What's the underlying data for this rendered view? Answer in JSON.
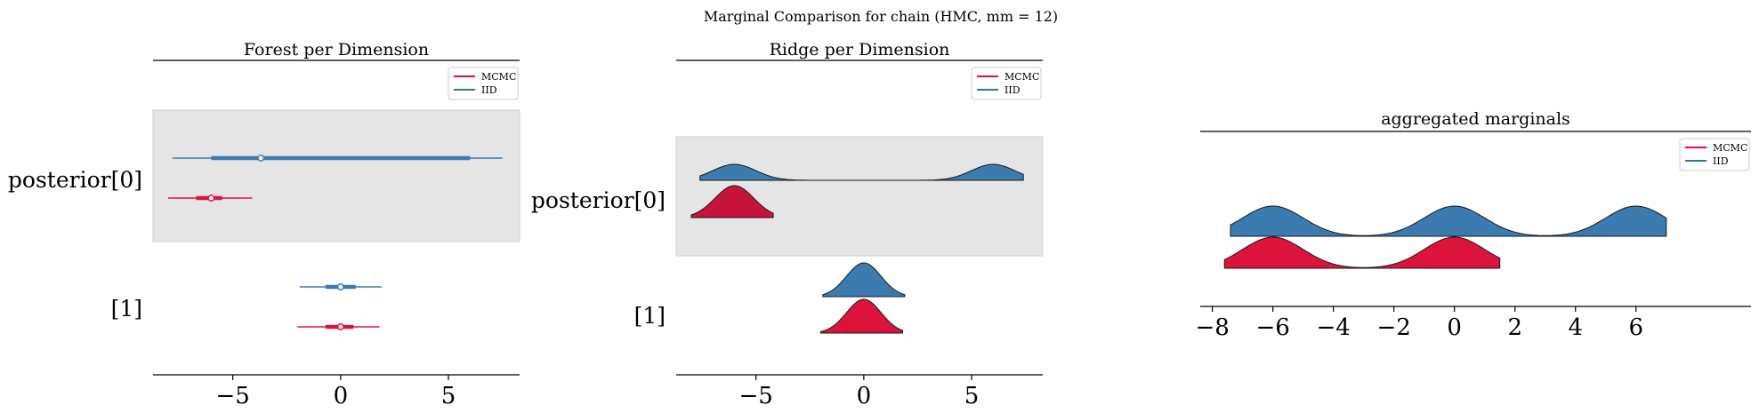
{
  "suptitle": "Marginal Comparison for chain (HMC, mm = 12)",
  "chart_data": [
    {
      "type": "forest",
      "title": "Forest per Dimension",
      "legend": {
        "placement": "top-right",
        "entries": [
          {
            "label": "MCMC",
            "color": "#dc143c"
          },
          {
            "label": "IID",
            "color": "#3b6fa4"
          }
        ]
      },
      "ylabels": [
        "posterior[0]",
        "[1]"
      ],
      "xlim": [
        -8.7,
        8.3
      ],
      "xticks": [
        -5,
        0,
        5
      ],
      "xtick_labels": [
        "−5",
        "0",
        "5"
      ],
      "shaded_rows": [
        0
      ],
      "rows": [
        {
          "IID": {
            "hdi_94": [
              -7.8,
              7.5
            ],
            "hdi_50": [
              -6.0,
              6.0
            ],
            "point": -3.7
          },
          "MCMC": {
            "hdi_94": [
              -8.0,
              -4.1
            ],
            "hdi_50": [
              -6.7,
              -5.5
            ],
            "point": -6.0
          }
        },
        {
          "IID": {
            "hdi_94": [
              -1.9,
              1.9
            ],
            "hdi_50": [
              -0.7,
              0.7
            ],
            "point": 0.0
          },
          "MCMC": {
            "hdi_94": [
              -2.0,
              1.8
            ],
            "hdi_50": [
              -0.7,
              0.6
            ],
            "point": 0.0
          }
        }
      ]
    },
    {
      "type": "ridge",
      "title": "Ridge per Dimension",
      "legend": {
        "placement": "top-right",
        "entries": [
          {
            "label": "MCMC",
            "color": "#dc143c"
          },
          {
            "label": "IID",
            "color": "#3b6fa4"
          }
        ]
      },
      "ylabels": [
        "posterior[0]",
        "[1]"
      ],
      "xlim": [
        -8.7,
        8.3
      ],
      "xticks": [
        -5,
        0,
        5
      ],
      "xtick_labels": [
        "−5",
        "0",
        "5"
      ],
      "shaded_rows": [
        0
      ],
      "rows": [
        {
          "IID": {
            "range": [
              -7.6,
              7.4
            ],
            "modes": [
              {
                "mu": -6.0,
                "sigma": 1.0
              },
              {
                "mu": 6.0,
                "sigma": 1.0
              }
            ]
          },
          "MCMC": {
            "range": [
              -8.0,
              -4.2
            ],
            "modes": [
              {
                "mu": -6.0,
                "sigma": 0.9
              }
            ]
          }
        },
        {
          "IID": {
            "range": [
              -1.9,
              1.9
            ],
            "modes": [
              {
                "mu": 0.0,
                "sigma": 0.8
              }
            ]
          },
          "MCMC": {
            "range": [
              -2.0,
              1.8
            ],
            "modes": [
              {
                "mu": 0.0,
                "sigma": 0.8
              }
            ]
          }
        }
      ]
    },
    {
      "type": "ridge",
      "title": "aggregated marginals",
      "legend": {
        "placement": "top-right",
        "entries": [
          {
            "label": "MCMC",
            "color": "#dc143c"
          },
          {
            "label": "IID",
            "color": "#3b6fa4"
          }
        ]
      },
      "xlim": [
        -8.4,
        9.8
      ],
      "xticks": [
        -8,
        -6,
        -4,
        -2,
        0,
        2,
        4,
        6
      ],
      "xtick_labels": [
        "−8",
        "−6",
        "−4",
        "−2",
        "0",
        "2",
        "4",
        "6"
      ],
      "series": [
        {
          "name": "IID",
          "color": "#3b7bb0",
          "range": [
            -7.4,
            7.0
          ],
          "modes": [
            {
              "mu": -6.0,
              "sigma": 1.0
            },
            {
              "mu": 0.0,
              "sigma": 1.0
            },
            {
              "mu": 6.0,
              "sigma": 1.0
            }
          ]
        },
        {
          "name": "MCMC",
          "color": "#dc143c",
          "range": [
            -7.6,
            1.5
          ],
          "modes": [
            {
              "mu": -6.0,
              "sigma": 1.0
            },
            {
              "mu": 0.0,
              "sigma": 1.0
            }
          ]
        }
      ]
    }
  ]
}
